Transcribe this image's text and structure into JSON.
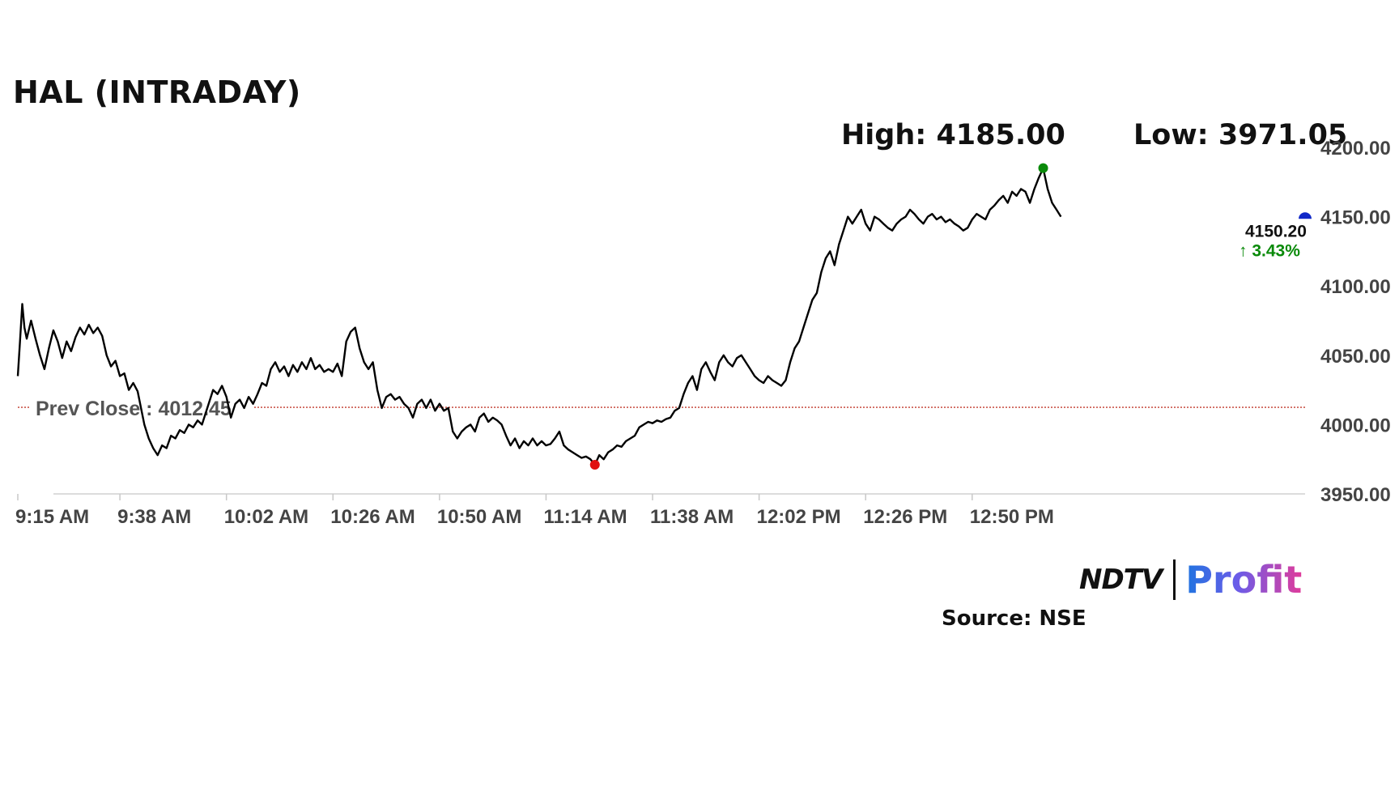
{
  "page": {
    "title": "HAL (INTRADAY)",
    "high_label": "High: 4185.00",
    "low_label": "Low: 3971.05",
    "source": "Source: NSE",
    "logo": {
      "left": "NDTV",
      "right": "Profit"
    }
  },
  "chart_data": {
    "type": "line",
    "title": "HAL (INTRADAY)",
    "xlabel": "",
    "ylabel": "",
    "ylim": [
      3950,
      4200
    ],
    "xlim": [
      0,
      290
    ],
    "grid": false,
    "legend": "none",
    "x_unit": "minutes since 9:15 AM",
    "x_tick_values": [
      0,
      23,
      47,
      71,
      95,
      119,
      143,
      167,
      191,
      215
    ],
    "x_tick_labels": [
      "9:15 AM",
      "9:38 AM",
      "10:02 AM",
      "10:26 AM",
      "10:50 AM",
      "11:14 AM",
      "11:38 AM",
      "12:02 PM",
      "12:26 PM",
      "12:50 PM"
    ],
    "y_ticks": [
      3950,
      4000,
      4050,
      4100,
      4150,
      4200
    ],
    "y_tick_labels": [
      "3950.00",
      "4000.00",
      "4050.00",
      "4100.00",
      "4150.00",
      "4200.00"
    ],
    "prev_close": 4012.45,
    "prev_close_label": "Prev Close : 4012.45",
    "last_price": 4150.2,
    "last_price_label": "4150.20",
    "change_label": "↑ 3.43%",
    "high": {
      "x": 231,
      "y": 4185.0
    },
    "low": {
      "x": 130,
      "y": 3971.05
    },
    "colors": {
      "line": "#000000",
      "prev_close": "#c0392b",
      "high_marker": "#0a8a0a",
      "low_marker": "#e01010",
      "last_marker": "#1028c8",
      "change": "#0a8a0a",
      "axis_text": "#444444"
    },
    "series": [
      {
        "values": [
          [
            0,
            4035
          ],
          [
            0.5,
            4060
          ],
          [
            1,
            4087
          ],
          [
            1.5,
            4070
          ],
          [
            2,
            4062
          ],
          [
            3,
            4075
          ],
          [
            4,
            4062
          ],
          [
            5,
            4050
          ],
          [
            6,
            4040
          ],
          [
            7,
            4055
          ],
          [
            8,
            4068
          ],
          [
            9,
            4060
          ],
          [
            10,
            4048
          ],
          [
            11,
            4060
          ],
          [
            12,
            4053
          ],
          [
            13,
            4063
          ],
          [
            14,
            4070
          ],
          [
            15,
            4065
          ],
          [
            16,
            4072
          ],
          [
            17,
            4066
          ],
          [
            18,
            4070
          ],
          [
            19,
            4064
          ],
          [
            20,
            4050
          ],
          [
            21,
            4042
          ],
          [
            22,
            4046
          ],
          [
            23,
            4035
          ],
          [
            24,
            4037
          ],
          [
            25,
            4025
          ],
          [
            26,
            4030
          ],
          [
            27,
            4024
          ],
          [
            28.5,
            4000
          ],
          [
            29.5,
            3990
          ],
          [
            30.5,
            3983
          ],
          [
            31.5,
            3978
          ],
          [
            32.5,
            3985
          ],
          [
            33.5,
            3983
          ],
          [
            34.5,
            3992
          ],
          [
            35.5,
            3990
          ],
          [
            36.5,
            3996
          ],
          [
            37.5,
            3994
          ],
          [
            38.5,
            4000
          ],
          [
            39.5,
            3998
          ],
          [
            40.5,
            4003
          ],
          [
            41.5,
            4000
          ],
          [
            44,
            4025
          ],
          [
            45,
            4022
          ],
          [
            46,
            4028
          ],
          [
            47,
            4020
          ],
          [
            48,
            4005
          ],
          [
            49,
            4015
          ],
          [
            50,
            4018
          ],
          [
            51,
            4012
          ],
          [
            52,
            4020
          ],
          [
            53,
            4015
          ],
          [
            54,
            4022
          ],
          [
            55,
            4030
          ],
          [
            56,
            4028
          ],
          [
            57,
            4040
          ],
          [
            58,
            4045
          ],
          [
            59,
            4038
          ],
          [
            60,
            4042
          ],
          [
            61,
            4035
          ],
          [
            62,
            4043
          ],
          [
            63,
            4038
          ],
          [
            64,
            4045
          ],
          [
            65,
            4040
          ],
          [
            66,
            4048
          ],
          [
            67,
            4040
          ],
          [
            68,
            4043
          ],
          [
            69,
            4038
          ],
          [
            70,
            4040
          ],
          [
            71,
            4038
          ],
          [
            72,
            4044
          ],
          [
            73,
            4035
          ],
          [
            74,
            4060
          ],
          [
            75,
            4067
          ],
          [
            76,
            4070
          ],
          [
            77,
            4055
          ],
          [
            78,
            4045
          ],
          [
            79,
            4040
          ],
          [
            80,
            4045
          ],
          [
            81,
            4025
          ],
          [
            82,
            4012
          ],
          [
            83,
            4020
          ],
          [
            84,
            4022
          ],
          [
            85,
            4018
          ],
          [
            86,
            4020
          ],
          [
            87,
            4015
          ],
          [
            88,
            4012
          ],
          [
            89,
            4005
          ],
          [
            90,
            4015
          ],
          [
            91,
            4018
          ],
          [
            92,
            4012
          ],
          [
            93,
            4018
          ],
          [
            94,
            4010
          ],
          [
            95,
            4015
          ],
          [
            96,
            4010
          ],
          [
            97,
            4012
          ],
          [
            98,
            3995
          ],
          [
            99,
            3990
          ],
          [
            100,
            3995
          ],
          [
            101,
            3998
          ],
          [
            102,
            4000
          ],
          [
            103,
            3995
          ],
          [
            104,
            4005
          ],
          [
            105,
            4008
          ],
          [
            106,
            4002
          ],
          [
            107,
            4005
          ],
          [
            108,
            4003
          ],
          [
            109,
            4000
          ],
          [
            110,
            3992
          ],
          [
            111,
            3985
          ],
          [
            112,
            3990
          ],
          [
            113,
            3983
          ],
          [
            114,
            3988
          ],
          [
            115,
            3985
          ],
          [
            116,
            3990
          ],
          [
            117,
            3985
          ],
          [
            118,
            3988
          ],
          [
            119,
            3985
          ],
          [
            120,
            3986
          ],
          [
            121,
            3990
          ],
          [
            122,
            3995
          ],
          [
            123,
            3985
          ],
          [
            124,
            3982
          ],
          [
            125,
            3980
          ],
          [
            126,
            3978
          ],
          [
            127,
            3976
          ],
          [
            128,
            3977
          ],
          [
            129,
            3975
          ],
          [
            130,
            3971.05
          ],
          [
            131,
            3978
          ],
          [
            132,
            3975
          ],
          [
            133,
            3980
          ],
          [
            134,
            3982
          ],
          [
            135,
            3985
          ],
          [
            136,
            3984
          ],
          [
            137,
            3988
          ],
          [
            138,
            3990
          ],
          [
            139,
            3992
          ],
          [
            140,
            3998
          ],
          [
            141,
            4000
          ],
          [
            142,
            4002
          ],
          [
            143,
            4001
          ],
          [
            144,
            4003
          ],
          [
            145,
            4002
          ],
          [
            146,
            4004
          ],
          [
            147,
            4005
          ],
          [
            148,
            4010
          ],
          [
            149,
            4012
          ],
          [
            150,
            4022
          ],
          [
            151,
            4030
          ],
          [
            152,
            4035
          ],
          [
            153,
            4025
          ],
          [
            154,
            4040
          ],
          [
            155,
            4045
          ],
          [
            156,
            4038
          ],
          [
            157,
            4032
          ],
          [
            158,
            4045
          ],
          [
            159,
            4050
          ],
          [
            160,
            4045
          ],
          [
            161,
            4042
          ],
          [
            162,
            4048
          ],
          [
            163,
            4050
          ],
          [
            164,
            4045
          ],
          [
            165,
            4040
          ],
          [
            166,
            4035
          ],
          [
            167,
            4032
          ],
          [
            168,
            4030
          ],
          [
            169,
            4035
          ],
          [
            170,
            4032
          ],
          [
            171,
            4030
          ],
          [
            172,
            4028
          ],
          [
            173,
            4032
          ],
          [
            174,
            4045
          ],
          [
            175,
            4055
          ],
          [
            176,
            4060
          ],
          [
            177,
            4070
          ],
          [
            178,
            4080
          ],
          [
            179,
            4090
          ],
          [
            180,
            4095
          ],
          [
            181,
            4110
          ],
          [
            182,
            4120
          ],
          [
            183,
            4125
          ],
          [
            184,
            4115
          ],
          [
            185,
            4130
          ],
          [
            186,
            4140
          ],
          [
            187,
            4150
          ],
          [
            188,
            4145
          ],
          [
            189,
            4150
          ],
          [
            190,
            4155
          ],
          [
            191,
            4145
          ],
          [
            192,
            4140
          ],
          [
            193,
            4150
          ],
          [
            194,
            4148
          ],
          [
            195,
            4145
          ],
          [
            196,
            4142
          ],
          [
            197,
            4140
          ],
          [
            198,
            4145
          ],
          [
            199,
            4148
          ],
          [
            200,
            4150
          ],
          [
            201,
            4155
          ],
          [
            202,
            4152
          ],
          [
            203,
            4148
          ],
          [
            204,
            4145
          ],
          [
            205,
            4150
          ],
          [
            206,
            4152
          ],
          [
            207,
            4148
          ],
          [
            208,
            4150
          ],
          [
            209,
            4146
          ],
          [
            210,
            4148
          ],
          [
            211,
            4145
          ],
          [
            212,
            4143
          ],
          [
            213,
            4140
          ],
          [
            214,
            4142
          ],
          [
            215,
            4148
          ],
          [
            216,
            4152
          ],
          [
            217,
            4150
          ],
          [
            218,
            4148
          ],
          [
            219,
            4155
          ],
          [
            220,
            4158
          ],
          [
            221,
            4162
          ],
          [
            222,
            4165
          ],
          [
            223,
            4160
          ],
          [
            224,
            4168
          ],
          [
            225,
            4165
          ],
          [
            226,
            4170
          ],
          [
            227,
            4168
          ],
          [
            228,
            4160
          ],
          [
            229,
            4170
          ],
          [
            230,
            4178
          ],
          [
            231,
            4185
          ],
          [
            232,
            4170
          ],
          [
            233,
            4160
          ],
          [
            234,
            4155
          ],
          [
            235,
            4150
          ]
        ]
      }
    ]
  }
}
